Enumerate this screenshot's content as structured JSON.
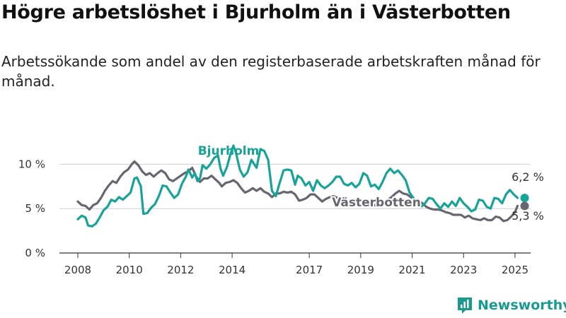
{
  "title": "Högre arbetslöshet i Bjurholm än i Västerbotten",
  "subtitle": "Arbetssökande som andel av den registerbaserade arbetskraften månad för månad.",
  "brand": {
    "name": "Newsworthy",
    "icon": "newsworthy-logo-icon",
    "color": "#1a9a8f"
  },
  "chart_data": {
    "type": "line",
    "title": "",
    "xlabel": "",
    "ylabel": "",
    "x_ticks": [
      "2008",
      "2010",
      "2012",
      "2014",
      "2017",
      "2019",
      "2021",
      "2023",
      "2025"
    ],
    "y_ticks": [
      {
        "value": 0,
        "label": "0 %"
      },
      {
        "value": 5,
        "label": "5 %"
      },
      {
        "value": 10,
        "label": "10 %"
      }
    ],
    "ylim": [
      0,
      12.5
    ],
    "xlim": [
      2008,
      2025.25
    ],
    "grid": true,
    "series": [
      {
        "name": "Bjurholm",
        "color": "#17a398",
        "end_label": "6,2 %",
        "end_value": 6.2,
        "points": [
          [
            2008.0,
            3.8
          ],
          [
            2008.15,
            4.2
          ],
          [
            2008.3,
            4.0
          ],
          [
            2008.4,
            3.1
          ],
          [
            2008.55,
            3.0
          ],
          [
            2008.7,
            3.3
          ],
          [
            2008.85,
            4.0
          ],
          [
            2009.0,
            4.8
          ],
          [
            2009.15,
            5.2
          ],
          [
            2009.3,
            6.0
          ],
          [
            2009.45,
            5.8
          ],
          [
            2009.6,
            6.3
          ],
          [
            2009.75,
            6.0
          ],
          [
            2009.9,
            6.4
          ],
          [
            2010.05,
            6.8
          ],
          [
            2010.2,
            8.4
          ],
          [
            2010.3,
            8.5
          ],
          [
            2010.45,
            7.5
          ],
          [
            2010.55,
            4.4
          ],
          [
            2010.7,
            4.5
          ],
          [
            2010.85,
            5.1
          ],
          [
            2011.0,
            5.5
          ],
          [
            2011.15,
            6.4
          ],
          [
            2011.3,
            7.6
          ],
          [
            2011.45,
            7.5
          ],
          [
            2011.6,
            6.8
          ],
          [
            2011.75,
            6.2
          ],
          [
            2011.9,
            6.6
          ],
          [
            2012.05,
            7.8
          ],
          [
            2012.2,
            8.6
          ],
          [
            2012.3,
            9.4
          ],
          [
            2012.45,
            8.5
          ],
          [
            2012.55,
            9.0
          ],
          [
            2012.65,
            8.1
          ],
          [
            2012.75,
            8.4
          ],
          [
            2012.85,
            9.9
          ],
          [
            2013.0,
            9.5
          ],
          [
            2013.15,
            10.0
          ],
          [
            2013.3,
            10.7
          ],
          [
            2013.45,
            11.0
          ],
          [
            2013.55,
            9.5
          ],
          [
            2013.65,
            8.7
          ],
          [
            2013.8,
            9.7
          ],
          [
            2013.95,
            11.3
          ],
          [
            2014.05,
            12.1
          ],
          [
            2014.15,
            11.3
          ],
          [
            2014.3,
            9.4
          ],
          [
            2014.45,
            8.6
          ],
          [
            2014.6,
            9.1
          ],
          [
            2014.75,
            10.5
          ],
          [
            2014.95,
            9.6
          ],
          [
            2015.1,
            11.7
          ],
          [
            2015.25,
            11.5
          ],
          [
            2015.4,
            10.5
          ],
          [
            2015.55,
            7.0
          ],
          [
            2015.7,
            6.4
          ],
          [
            2015.85,
            7.9
          ],
          [
            2016.0,
            9.3
          ],
          [
            2016.15,
            9.4
          ],
          [
            2016.3,
            9.3
          ],
          [
            2016.45,
            7.7
          ],
          [
            2016.55,
            8.7
          ],
          [
            2016.7,
            8.4
          ],
          [
            2016.85,
            7.6
          ],
          [
            2017.0,
            8.0
          ],
          [
            2017.15,
            7.0
          ],
          [
            2017.3,
            8.2
          ],
          [
            2017.45,
            7.6
          ],
          [
            2017.6,
            7.3
          ],
          [
            2017.75,
            7.6
          ],
          [
            2017.9,
            8.0
          ],
          [
            2018.05,
            8.6
          ],
          [
            2018.2,
            8.6
          ],
          [
            2018.35,
            7.8
          ],
          [
            2018.5,
            7.6
          ],
          [
            2018.65,
            7.9
          ],
          [
            2018.8,
            7.4
          ],
          [
            2018.95,
            7.8
          ],
          [
            2019.1,
            9.0
          ],
          [
            2019.25,
            8.7
          ],
          [
            2019.4,
            7.5
          ],
          [
            2019.55,
            7.7
          ],
          [
            2019.7,
            7.2
          ],
          [
            2019.85,
            8.0
          ],
          [
            2020.0,
            9.0
          ],
          [
            2020.15,
            9.5
          ],
          [
            2020.3,
            9.0
          ],
          [
            2020.45,
            9.3
          ],
          [
            2020.6,
            8.8
          ],
          [
            2020.75,
            8.2
          ],
          [
            2020.9,
            6.8
          ],
          [
            2021.05,
            6.2
          ],
          [
            2021.2,
            5.7
          ],
          [
            2021.35,
            5.2
          ],
          [
            2021.5,
            5.6
          ],
          [
            2021.65,
            6.2
          ],
          [
            2021.8,
            6.1
          ],
          [
            2021.95,
            5.5
          ],
          [
            2022.1,
            5.0
          ],
          [
            2022.25,
            5.6
          ],
          [
            2022.4,
            5.2
          ],
          [
            2022.55,
            5.8
          ],
          [
            2022.7,
            5.3
          ],
          [
            2022.85,
            6.2
          ],
          [
            2023.0,
            5.6
          ],
          [
            2023.15,
            5.2
          ],
          [
            2023.3,
            4.7
          ],
          [
            2023.45,
            4.9
          ],
          [
            2023.6,
            6.0
          ],
          [
            2023.75,
            5.9
          ],
          [
            2023.9,
            5.2
          ],
          [
            2024.05,
            5.0
          ],
          [
            2024.2,
            6.2
          ],
          [
            2024.35,
            6.1
          ],
          [
            2024.5,
            5.6
          ],
          [
            2024.65,
            6.6
          ],
          [
            2024.8,
            7.1
          ],
          [
            2024.95,
            6.6
          ],
          [
            2025.1,
            6.2
          ]
        ]
      },
      {
        "name": "Västerbotten",
        "color": "#666670",
        "end_label": "5,3 %",
        "end_value": 5.3,
        "points": [
          [
            2008.0,
            5.8
          ],
          [
            2008.15,
            5.4
          ],
          [
            2008.3,
            5.3
          ],
          [
            2008.45,
            4.9
          ],
          [
            2008.6,
            5.4
          ],
          [
            2008.75,
            5.6
          ],
          [
            2008.9,
            6.2
          ],
          [
            2009.05,
            7.0
          ],
          [
            2009.2,
            7.6
          ],
          [
            2009.35,
            8.1
          ],
          [
            2009.5,
            7.9
          ],
          [
            2009.65,
            8.6
          ],
          [
            2009.8,
            9.1
          ],
          [
            2009.95,
            9.4
          ],
          [
            2010.1,
            10.0
          ],
          [
            2010.2,
            10.3
          ],
          [
            2010.35,
            9.9
          ],
          [
            2010.5,
            9.2
          ],
          [
            2010.65,
            8.8
          ],
          [
            2010.8,
            9.0
          ],
          [
            2010.95,
            8.6
          ],
          [
            2011.1,
            9.0
          ],
          [
            2011.25,
            9.3
          ],
          [
            2011.4,
            9.0
          ],
          [
            2011.55,
            8.3
          ],
          [
            2011.7,
            8.1
          ],
          [
            2011.85,
            8.4
          ],
          [
            2012.0,
            8.7
          ],
          [
            2012.15,
            9.0
          ],
          [
            2012.3,
            9.2
          ],
          [
            2012.45,
            9.6
          ],
          [
            2012.6,
            8.6
          ],
          [
            2012.75,
            8.0
          ],
          [
            2012.9,
            8.4
          ],
          [
            2013.05,
            8.4
          ],
          [
            2013.2,
            8.7
          ],
          [
            2013.35,
            8.3
          ],
          [
            2013.5,
            7.9
          ],
          [
            2013.6,
            7.5
          ],
          [
            2013.75,
            7.9
          ],
          [
            2013.9,
            8.0
          ],
          [
            2014.05,
            8.2
          ],
          [
            2014.2,
            7.9
          ],
          [
            2014.35,
            7.3
          ],
          [
            2014.5,
            6.8
          ],
          [
            2014.65,
            7.0
          ],
          [
            2014.8,
            7.3
          ],
          [
            2014.95,
            7.0
          ],
          [
            2015.1,
            7.3
          ],
          [
            2015.25,
            6.9
          ],
          [
            2015.4,
            6.7
          ],
          [
            2015.55,
            6.3
          ],
          [
            2015.7,
            6.7
          ],
          [
            2015.85,
            6.7
          ],
          [
            2016.0,
            6.9
          ],
          [
            2016.15,
            6.8
          ],
          [
            2016.3,
            6.9
          ],
          [
            2016.45,
            6.6
          ],
          [
            2016.6,
            5.9
          ],
          [
            2016.75,
            6.0
          ],
          [
            2016.9,
            6.2
          ],
          [
            2017.05,
            6.6
          ],
          [
            2017.2,
            6.6
          ],
          [
            2017.35,
            6.2
          ],
          [
            2017.5,
            5.8
          ],
          [
            2017.65,
            6.1
          ],
          [
            2017.8,
            6.3
          ],
          [
            2017.95,
            6.4
          ],
          [
            2018.1,
            6.2
          ],
          [
            2018.25,
            5.8
          ],
          [
            2018.4,
            5.6
          ],
          [
            2018.55,
            5.8
          ],
          [
            2018.7,
            5.8
          ],
          [
            2018.85,
            5.5
          ],
          [
            2019.0,
            5.6
          ],
          [
            2019.15,
            5.8
          ],
          [
            2019.3,
            5.9
          ],
          [
            2019.45,
            5.5
          ],
          [
            2019.6,
            5.3
          ],
          [
            2019.75,
            5.5
          ],
          [
            2019.9,
            5.6
          ],
          [
            2020.05,
            6.0
          ],
          [
            2020.2,
            6.3
          ],
          [
            2020.35,
            6.7
          ],
          [
            2020.5,
            7.0
          ],
          [
            2020.65,
            6.7
          ],
          [
            2020.8,
            6.6
          ],
          [
            2020.95,
            6.3
          ],
          [
            2021.1,
            6.0
          ],
          [
            2021.25,
            5.9
          ],
          [
            2021.4,
            5.6
          ],
          [
            2021.55,
            5.2
          ],
          [
            2021.7,
            5.0
          ],
          [
            2021.85,
            4.9
          ],
          [
            2022.0,
            4.9
          ],
          [
            2022.15,
            4.8
          ],
          [
            2022.3,
            4.6
          ],
          [
            2022.45,
            4.5
          ],
          [
            2022.6,
            4.3
          ],
          [
            2022.75,
            4.3
          ],
          [
            2022.9,
            4.3
          ],
          [
            2023.05,
            4.0
          ],
          [
            2023.2,
            4.2
          ],
          [
            2023.35,
            3.9
          ],
          [
            2023.5,
            3.8
          ],
          [
            2023.65,
            3.7
          ],
          [
            2023.8,
            3.9
          ],
          [
            2023.95,
            3.7
          ],
          [
            2024.1,
            3.7
          ],
          [
            2024.25,
            4.1
          ],
          [
            2024.4,
            4.0
          ],
          [
            2024.55,
            3.6
          ],
          [
            2024.7,
            3.7
          ],
          [
            2024.85,
            4.1
          ],
          [
            2025.0,
            4.6
          ],
          [
            2025.1,
            5.3
          ]
        ]
      }
    ]
  }
}
